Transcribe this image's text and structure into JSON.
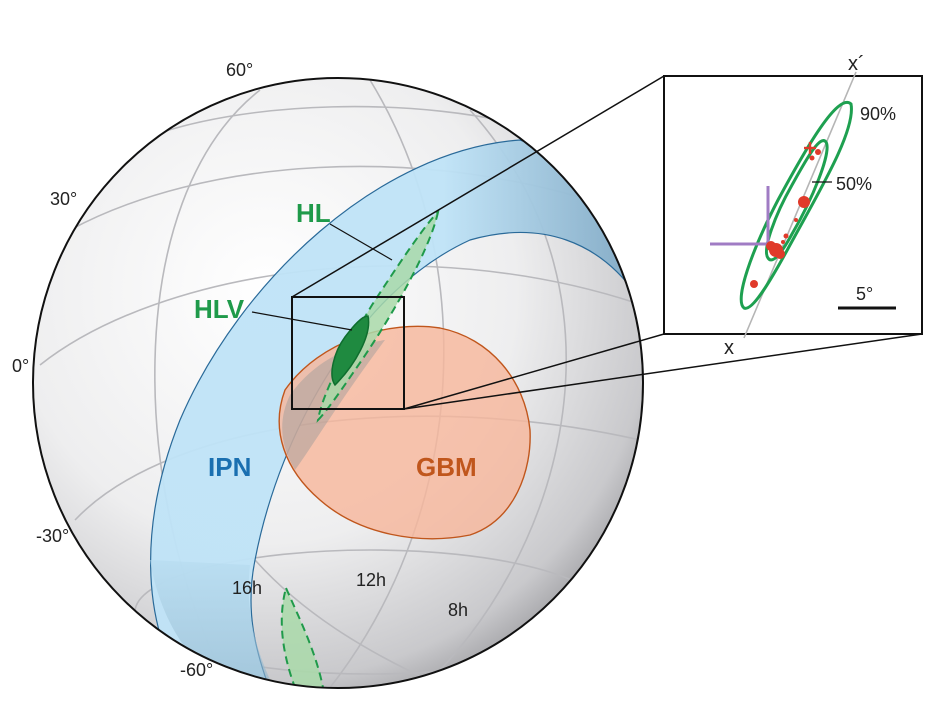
{
  "latitude_labels": [
    "60°",
    "30°",
    "0°",
    "-30°",
    "-60°"
  ],
  "hour_labels": [
    "16h",
    "12h",
    "8h"
  ],
  "regions": {
    "hl": {
      "label": "HL",
      "color": "#1f9a4a"
    },
    "hlv": {
      "label": "HLV",
      "color": "#1f9a4a"
    },
    "ipn": {
      "label": "IPN",
      "color": "#1a6fb0"
    },
    "gbm": {
      "label": "GBM",
      "color": "#c0561c"
    }
  },
  "inset": {
    "axis_top_label": "x´",
    "axis_bottom_label": "x",
    "contour_90_label": "90%",
    "contour_50_label": "50%",
    "scale_label": "5°"
  }
}
